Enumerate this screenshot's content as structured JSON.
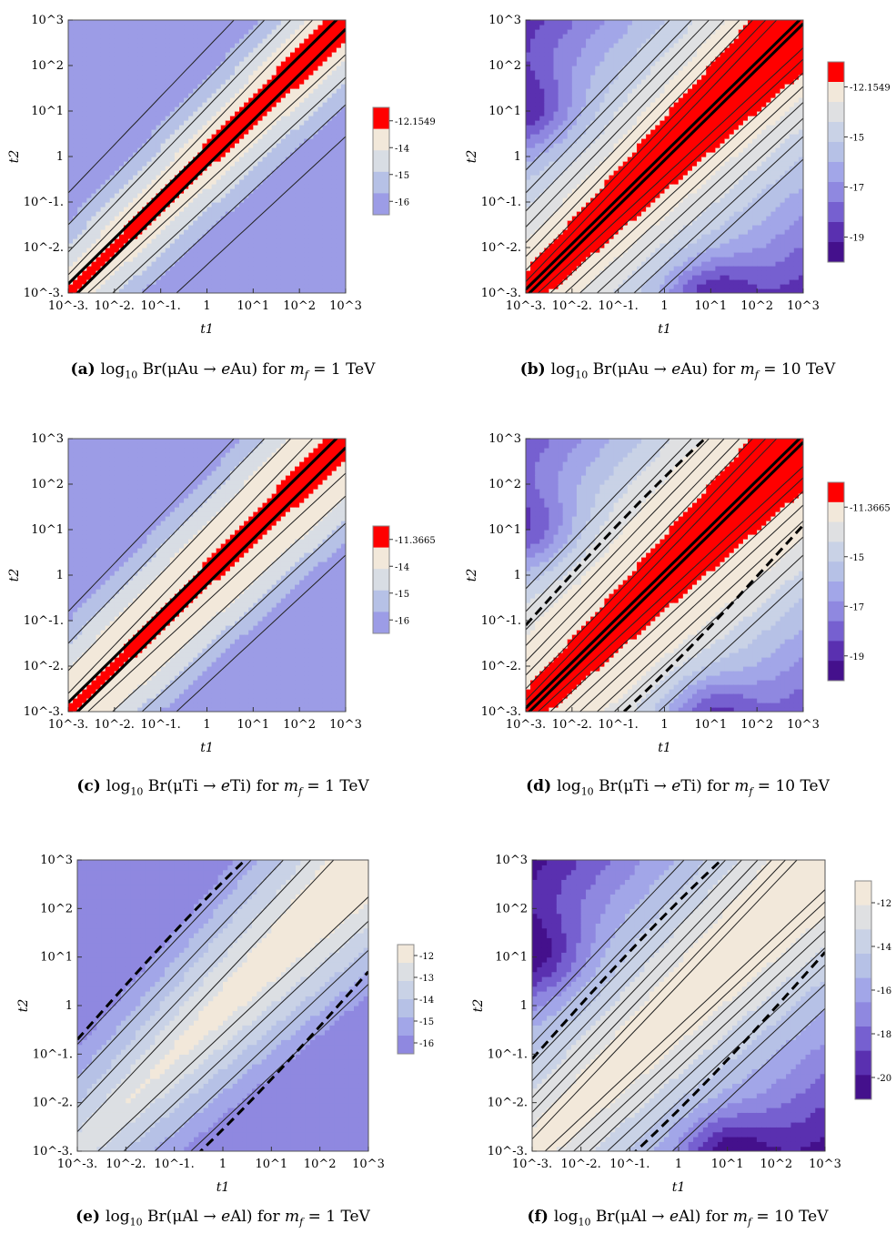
{
  "chart_data": [
    {
      "id": "a",
      "type": "contour",
      "title": "log10 Br(μAu → eAu) for m_f = 1 TeV",
      "xlabel": "t1",
      "ylabel": "t2",
      "x_scale": "log",
      "y_scale": "log",
      "xlim": [
        0.001,
        1000
      ],
      "ylim": [
        0.001,
        1000
      ],
      "xticks": [
        "10^-3.",
        "10^-2.",
        "10^-1.",
        "1",
        "10^1",
        "10^2",
        "10^3"
      ],
      "yticks": [
        "10^-3.",
        "10^-2.",
        "10^-1.",
        "1",
        "10^1",
        "10^2",
        "10^3"
      ],
      "legend": [
        "-12.1549",
        "-14",
        "-15",
        "-16"
      ],
      "legend_colors": [
        "#ff0000",
        "#f2e8da",
        "#d8dde4",
        "#b6c1e6",
        "#9c9ce6"
      ],
      "contour_levels": [
        -16,
        -15,
        -14,
        -13,
        -12.1549
      ],
      "experimental_bound": -12.1549,
      "has_dashed_line": false
    },
    {
      "id": "b",
      "type": "contour",
      "title": "log10 Br(μAu → eAu) for m_f = 10 TeV",
      "xlabel": "t1",
      "ylabel": "t2",
      "x_scale": "log",
      "y_scale": "log",
      "xlim": [
        0.001,
        1000
      ],
      "ylim": [
        0.001,
        1000
      ],
      "xticks": [
        "10^-3.",
        "10^-2.",
        "10^-1.",
        "1",
        "10^1",
        "10^2",
        "10^3"
      ],
      "yticks": [
        "10^-3.",
        "10^-2.",
        "10^-1.",
        "1",
        "10^1",
        "10^2",
        "10^3"
      ],
      "legend": [
        "-12.1549",
        "-15",
        "-17",
        "-19"
      ],
      "legend_colors": [
        "#ff0000",
        "#f2e8da",
        "#dfe0e2",
        "#c9d2e6",
        "#b6c1e6",
        "#a2a6e8",
        "#8f88e0",
        "#7660d0",
        "#5a30b0",
        "#44108c"
      ],
      "contour_levels": [
        -20,
        -19,
        -18,
        -17,
        -16,
        -15,
        -14,
        -13,
        -12.1549
      ],
      "experimental_bound": -12.1549,
      "has_dashed_line": false
    },
    {
      "id": "c",
      "type": "contour",
      "title": "log10 Br(μTi → eTi) for m_f = 1 TeV",
      "xlabel": "t1",
      "ylabel": "t2",
      "x_scale": "log",
      "y_scale": "log",
      "xlim": [
        0.001,
        1000
      ],
      "ylim": [
        0.001,
        1000
      ],
      "xticks": [
        "10^-3.",
        "10^-2.",
        "10^-1.",
        "1",
        "10^1",
        "10^2",
        "10^3"
      ],
      "yticks": [
        "10^-3.",
        "10^-2.",
        "10^-1.",
        "1",
        "10^1",
        "10^2",
        "10^3"
      ],
      "legend": [
        "-11.3665",
        "-14",
        "-15",
        "-16"
      ],
      "legend_colors": [
        "#ff0000",
        "#f2e8da",
        "#d8dde4",
        "#b6c1e6",
        "#9c9ce6"
      ],
      "contour_levels": [
        -16,
        -15,
        -14,
        -13,
        -11.3665
      ],
      "experimental_bound": -11.3665,
      "has_dashed_line": false
    },
    {
      "id": "d",
      "type": "contour",
      "title": "log10 Br(μTi → eTi) for m_f = 10 TeV",
      "xlabel": "t1",
      "ylabel": "t2",
      "x_scale": "log",
      "y_scale": "log",
      "xlim": [
        0.001,
        1000
      ],
      "ylim": [
        0.001,
        1000
      ],
      "xticks": [
        "10^-3.",
        "10^-2.",
        "10^-1.",
        "1",
        "10^1",
        "10^2",
        "10^3"
      ],
      "yticks": [
        "10^-3.",
        "10^-2.",
        "10^-1.",
        "1",
        "10^1",
        "10^2",
        "10^3"
      ],
      "legend": [
        "-11.3665",
        "-15",
        "-17",
        "-19"
      ],
      "legend_colors": [
        "#ff0000",
        "#f2e8da",
        "#dfe0e2",
        "#c9d2e6",
        "#b6c1e6",
        "#a2a6e8",
        "#8f88e0",
        "#7660d0",
        "#5a30b0",
        "#44108c"
      ],
      "contour_levels": [
        -20,
        -19,
        -18,
        -17,
        -16,
        -15,
        -14,
        -13,
        -11.3665
      ],
      "experimental_bound": -11.3665,
      "has_dashed_line": true
    },
    {
      "id": "e",
      "type": "contour",
      "title": "log10 Br(μAl → eAl) for m_f = 1 TeV",
      "xlabel": "t1",
      "ylabel": "t2",
      "x_scale": "log",
      "y_scale": "log",
      "xlim": [
        0.001,
        1000
      ],
      "ylim": [
        0.001,
        1000
      ],
      "xticks": [
        "10^-3.",
        "10^-2.",
        "10^-1.",
        "1",
        "10^1",
        "10^2",
        "10^3"
      ],
      "yticks": [
        "10^-3.",
        "10^-2.",
        "10^-1.",
        "1",
        "10^1",
        "10^2",
        "10^3"
      ],
      "legend": [
        "-12",
        "-13",
        "-14",
        "-15",
        "-16"
      ],
      "legend_colors": [
        "#f2e8da",
        "#dcdfe3",
        "#c9d2e6",
        "#b6c1e6",
        "#a2a6e8",
        "#8f88e0"
      ],
      "contour_levels": [
        -16,
        -15,
        -14,
        -13,
        -12
      ],
      "has_dashed_line": true
    },
    {
      "id": "f",
      "type": "contour",
      "title": "log10 Br(μAl → eAl) for m_f = 10 TeV",
      "xlabel": "t1",
      "ylabel": "t2",
      "x_scale": "log",
      "y_scale": "log",
      "xlim": [
        0.001,
        1000
      ],
      "ylim": [
        0.001,
        1000
      ],
      "xticks": [
        "10^-3.",
        "10^-2.",
        "10^-1.",
        "1",
        "10^1",
        "10^2",
        "10^3"
      ],
      "yticks": [
        "10^-3.",
        "10^-2.",
        "10^-1.",
        "1",
        "10^1",
        "10^2",
        "10^3"
      ],
      "legend": [
        "-12",
        "-14",
        "-16",
        "-18",
        "-20"
      ],
      "legend_colors": [
        "#f2e8da",
        "#dfe0e2",
        "#c9d2e6",
        "#b6c1e6",
        "#a2a6e8",
        "#8f88e0",
        "#7660d0",
        "#5a30b0",
        "#44108c"
      ],
      "contour_levels": [
        -20,
        -19,
        -18,
        -17,
        -16,
        -15,
        -14,
        -13,
        -12
      ],
      "has_dashed_line": true
    }
  ],
  "captions": [
    {
      "label": "(a)",
      "nucleus": "Au",
      "mass": "1"
    },
    {
      "label": "(b)",
      "nucleus": "Au",
      "mass": "10"
    },
    {
      "label": "(c)",
      "nucleus": "Ti",
      "mass": "1"
    },
    {
      "label": "(d)",
      "nucleus": "Ti",
      "mass": "10"
    },
    {
      "label": "(e)",
      "nucleus": "Al",
      "mass": "1"
    },
    {
      "label": "(f)",
      "nucleus": "Al",
      "mass": "10"
    }
  ]
}
